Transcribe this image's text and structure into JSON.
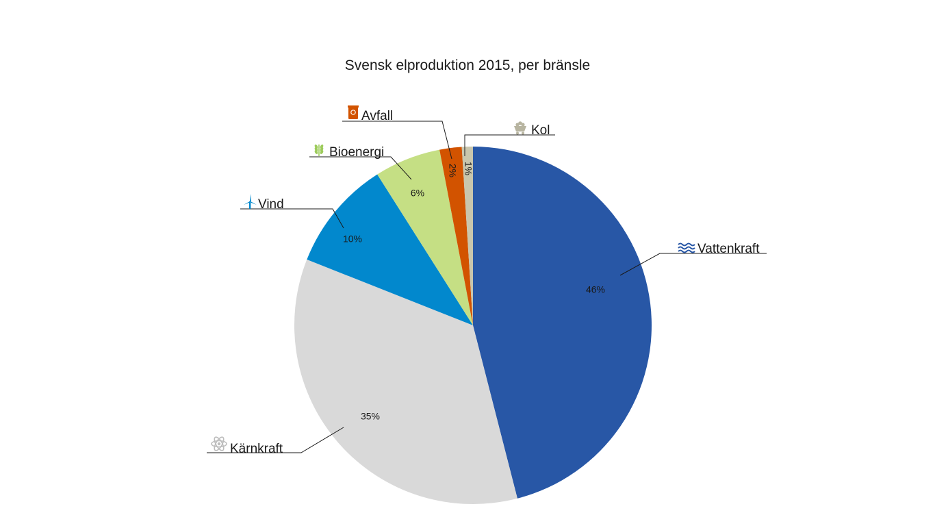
{
  "chart_data": {
    "type": "pie",
    "title": "Svensk elproduktion 2015, per bränsle",
    "slices": [
      {
        "label": "Vattenkraft",
        "value": 46,
        "value_label": "46%",
        "color": "#2857a6",
        "icon": "water-waves-icon"
      },
      {
        "label": "Kärnkraft",
        "value": 35,
        "value_label": "35%",
        "color": "#d9d9d9",
        "icon": "atom-icon"
      },
      {
        "label": "Vind",
        "value": 10,
        "value_label": "10%",
        "color": "#0288cd",
        "icon": "wind-turbine-icon"
      },
      {
        "label": "Bioenergi",
        "value": 6,
        "value_label": "6%",
        "color": "#c5df84",
        "icon": "wheat-icon"
      },
      {
        "label": "Avfall",
        "value": 2,
        "value_label": "2%",
        "color": "#d25300",
        "icon": "recycle-bin-icon"
      },
      {
        "label": "Kol",
        "value": 1,
        "value_label": "1%",
        "color": "#c9c6ad",
        "icon": "coal-cart-icon"
      }
    ],
    "start_angle": "12 o'clock",
    "direction": "clockwise",
    "legend": "none"
  }
}
